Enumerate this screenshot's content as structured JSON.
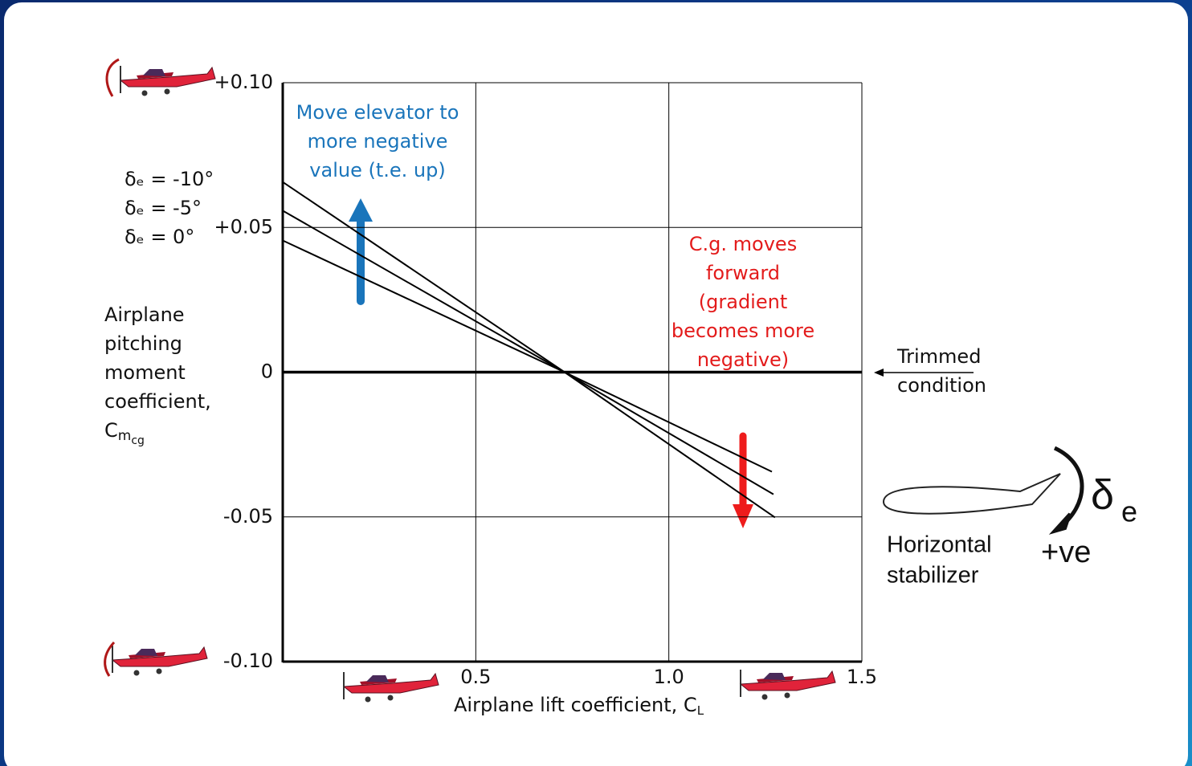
{
  "chart_data": {
    "type": "line",
    "x_label": {
      "text": "Airplane lift coefficient, C",
      "sub": "L"
    },
    "y_label": {
      "lines": [
        "Airplane",
        "pitching",
        "moment",
        "coefficient,"
      ],
      "symbol": "C",
      "sub": "m",
      "subsub": "cg"
    },
    "series": [
      {
        "name": "δₑ = -10°",
        "color": "#000000",
        "x": [
          0,
          0.73,
          1.275
        ],
        "values": [
          0.0657,
          0,
          -0.0502
        ]
      },
      {
        "name": "δₑ = -5°",
        "color": "#000000",
        "x": [
          0,
          0.73,
          1.271
        ],
        "values": [
          0.0558,
          0,
          -0.0422
        ]
      },
      {
        "name": "δₑ = 0°",
        "color": "#000000",
        "x": [
          0,
          0.73,
          1.267
        ],
        "values": [
          0.0455,
          0,
          -0.0344
        ]
      }
    ],
    "xlim": [
      0,
      1.5
    ],
    "ylim": [
      -0.1,
      0.1
    ],
    "xticks": [
      0.5,
      {
        "value": 1,
        "label": "1.0"
      },
      1.5
    ],
    "yticks": [
      {
        "value": 0.1,
        "label": "+0.10"
      },
      {
        "value": 0.05,
        "label": "+0.05"
      },
      0,
      {
        "value": -0.05,
        "label": "-0.05"
      },
      {
        "value": -0.1,
        "label": "-0.10"
      }
    ],
    "grid": true,
    "annotations": {
      "elevator": [
        "Move elevator to",
        "more negative",
        "value (t.e. up)"
      ],
      "cg": [
        "C.g. moves",
        "forward",
        "(gradient",
        "becomes more",
        "negative)"
      ],
      "trimmed": [
        "Trimmed",
        "condition"
      ],
      "stabilizer": [
        "Horizontal",
        "stabilizer"
      ],
      "deflection": "δ",
      "deflection_sub": "e",
      "positive": "+ve"
    }
  }
}
